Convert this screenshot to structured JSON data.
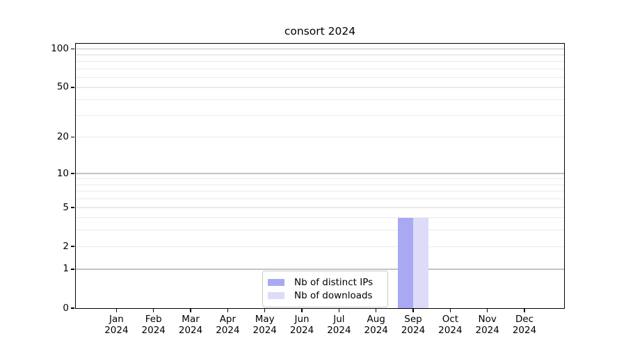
{
  "chart": {
    "title": "consort 2024"
  },
  "chart_data": {
    "type": "bar",
    "title": "consort 2024",
    "xlabel": "",
    "ylabel": "",
    "x_months": [
      "Jan",
      "Feb",
      "Mar",
      "Apr",
      "May",
      "Jun",
      "Jul",
      "Aug",
      "Sep",
      "Oct",
      "Nov",
      "Dec"
    ],
    "x_year": "2024",
    "series": [
      {
        "name": "Nb of distinct IPs",
        "color": "#a9a9f3",
        "values": [
          0,
          0,
          0,
          0,
          0,
          0,
          0,
          0,
          4,
          0,
          0,
          0
        ]
      },
      {
        "name": "Nb of downloads",
        "color": "#dcdcf8",
        "values": [
          0,
          0,
          0,
          0,
          0,
          0,
          0,
          0,
          4,
          0,
          0,
          0
        ]
      }
    ],
    "y_ticks": [
      0,
      1,
      2,
      5,
      10,
      20,
      50,
      100
    ],
    "major_gridlines": [
      1,
      10,
      100
    ],
    "minor_gridlines": [
      2,
      3,
      4,
      5,
      6,
      7,
      8,
      9,
      20,
      30,
      40,
      50,
      60,
      70,
      80,
      90
    ],
    "ylim": [
      0,
      110
    ],
    "y_scale": "log10(1+v)",
    "grid": "horizontal",
    "legend_position": "bottom-center",
    "colors": {
      "axis": "#000000",
      "grid_major": "#c3c3c3",
      "grid_minor": "#ebebeb",
      "background": "#ffffff"
    }
  }
}
